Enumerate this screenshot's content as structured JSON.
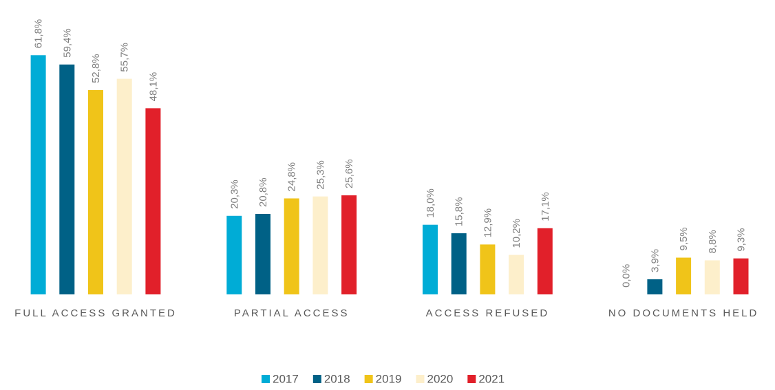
{
  "chart_data": {
    "type": "bar",
    "categories": [
      "FULL ACCESS GRANTED",
      "PARTIAL ACCESS",
      "ACCESS REFUSED",
      "NO DOCUMENTS HELD"
    ],
    "series": [
      {
        "name": "2017",
        "color": "#00acd6",
        "values": [
          61.8,
          20.3,
          18.0,
          0.0
        ],
        "value_labels": [
          "61,8%",
          "20,3%",
          "18,0%",
          "0,0%"
        ]
      },
      {
        "name": "2018",
        "color": "#006186",
        "values": [
          59.4,
          20.8,
          15.8,
          3.9
        ],
        "value_labels": [
          "59,4%",
          "20,8%",
          "15,8%",
          "3,9%"
        ]
      },
      {
        "name": "2019",
        "color": "#f0c419",
        "values": [
          52.8,
          24.8,
          12.9,
          9.5
        ],
        "value_labels": [
          "52,8%",
          "24,8%",
          "12,9%",
          "9,5%"
        ]
      },
      {
        "name": "2020",
        "color": "#fdefcb",
        "values": [
          55.7,
          25.3,
          10.2,
          8.8
        ],
        "value_labels": [
          "55,7%",
          "25,3%",
          "10,2%",
          "8,8%"
        ]
      },
      {
        "name": "2021",
        "color": "#e1202a",
        "values": [
          48.1,
          25.6,
          17.1,
          9.3
        ],
        "value_labels": [
          "48,1%",
          "25,6%",
          "17,1%",
          "9,3%"
        ]
      }
    ],
    "ylim": [
      0,
      75
    ],
    "legend": "bottom"
  }
}
